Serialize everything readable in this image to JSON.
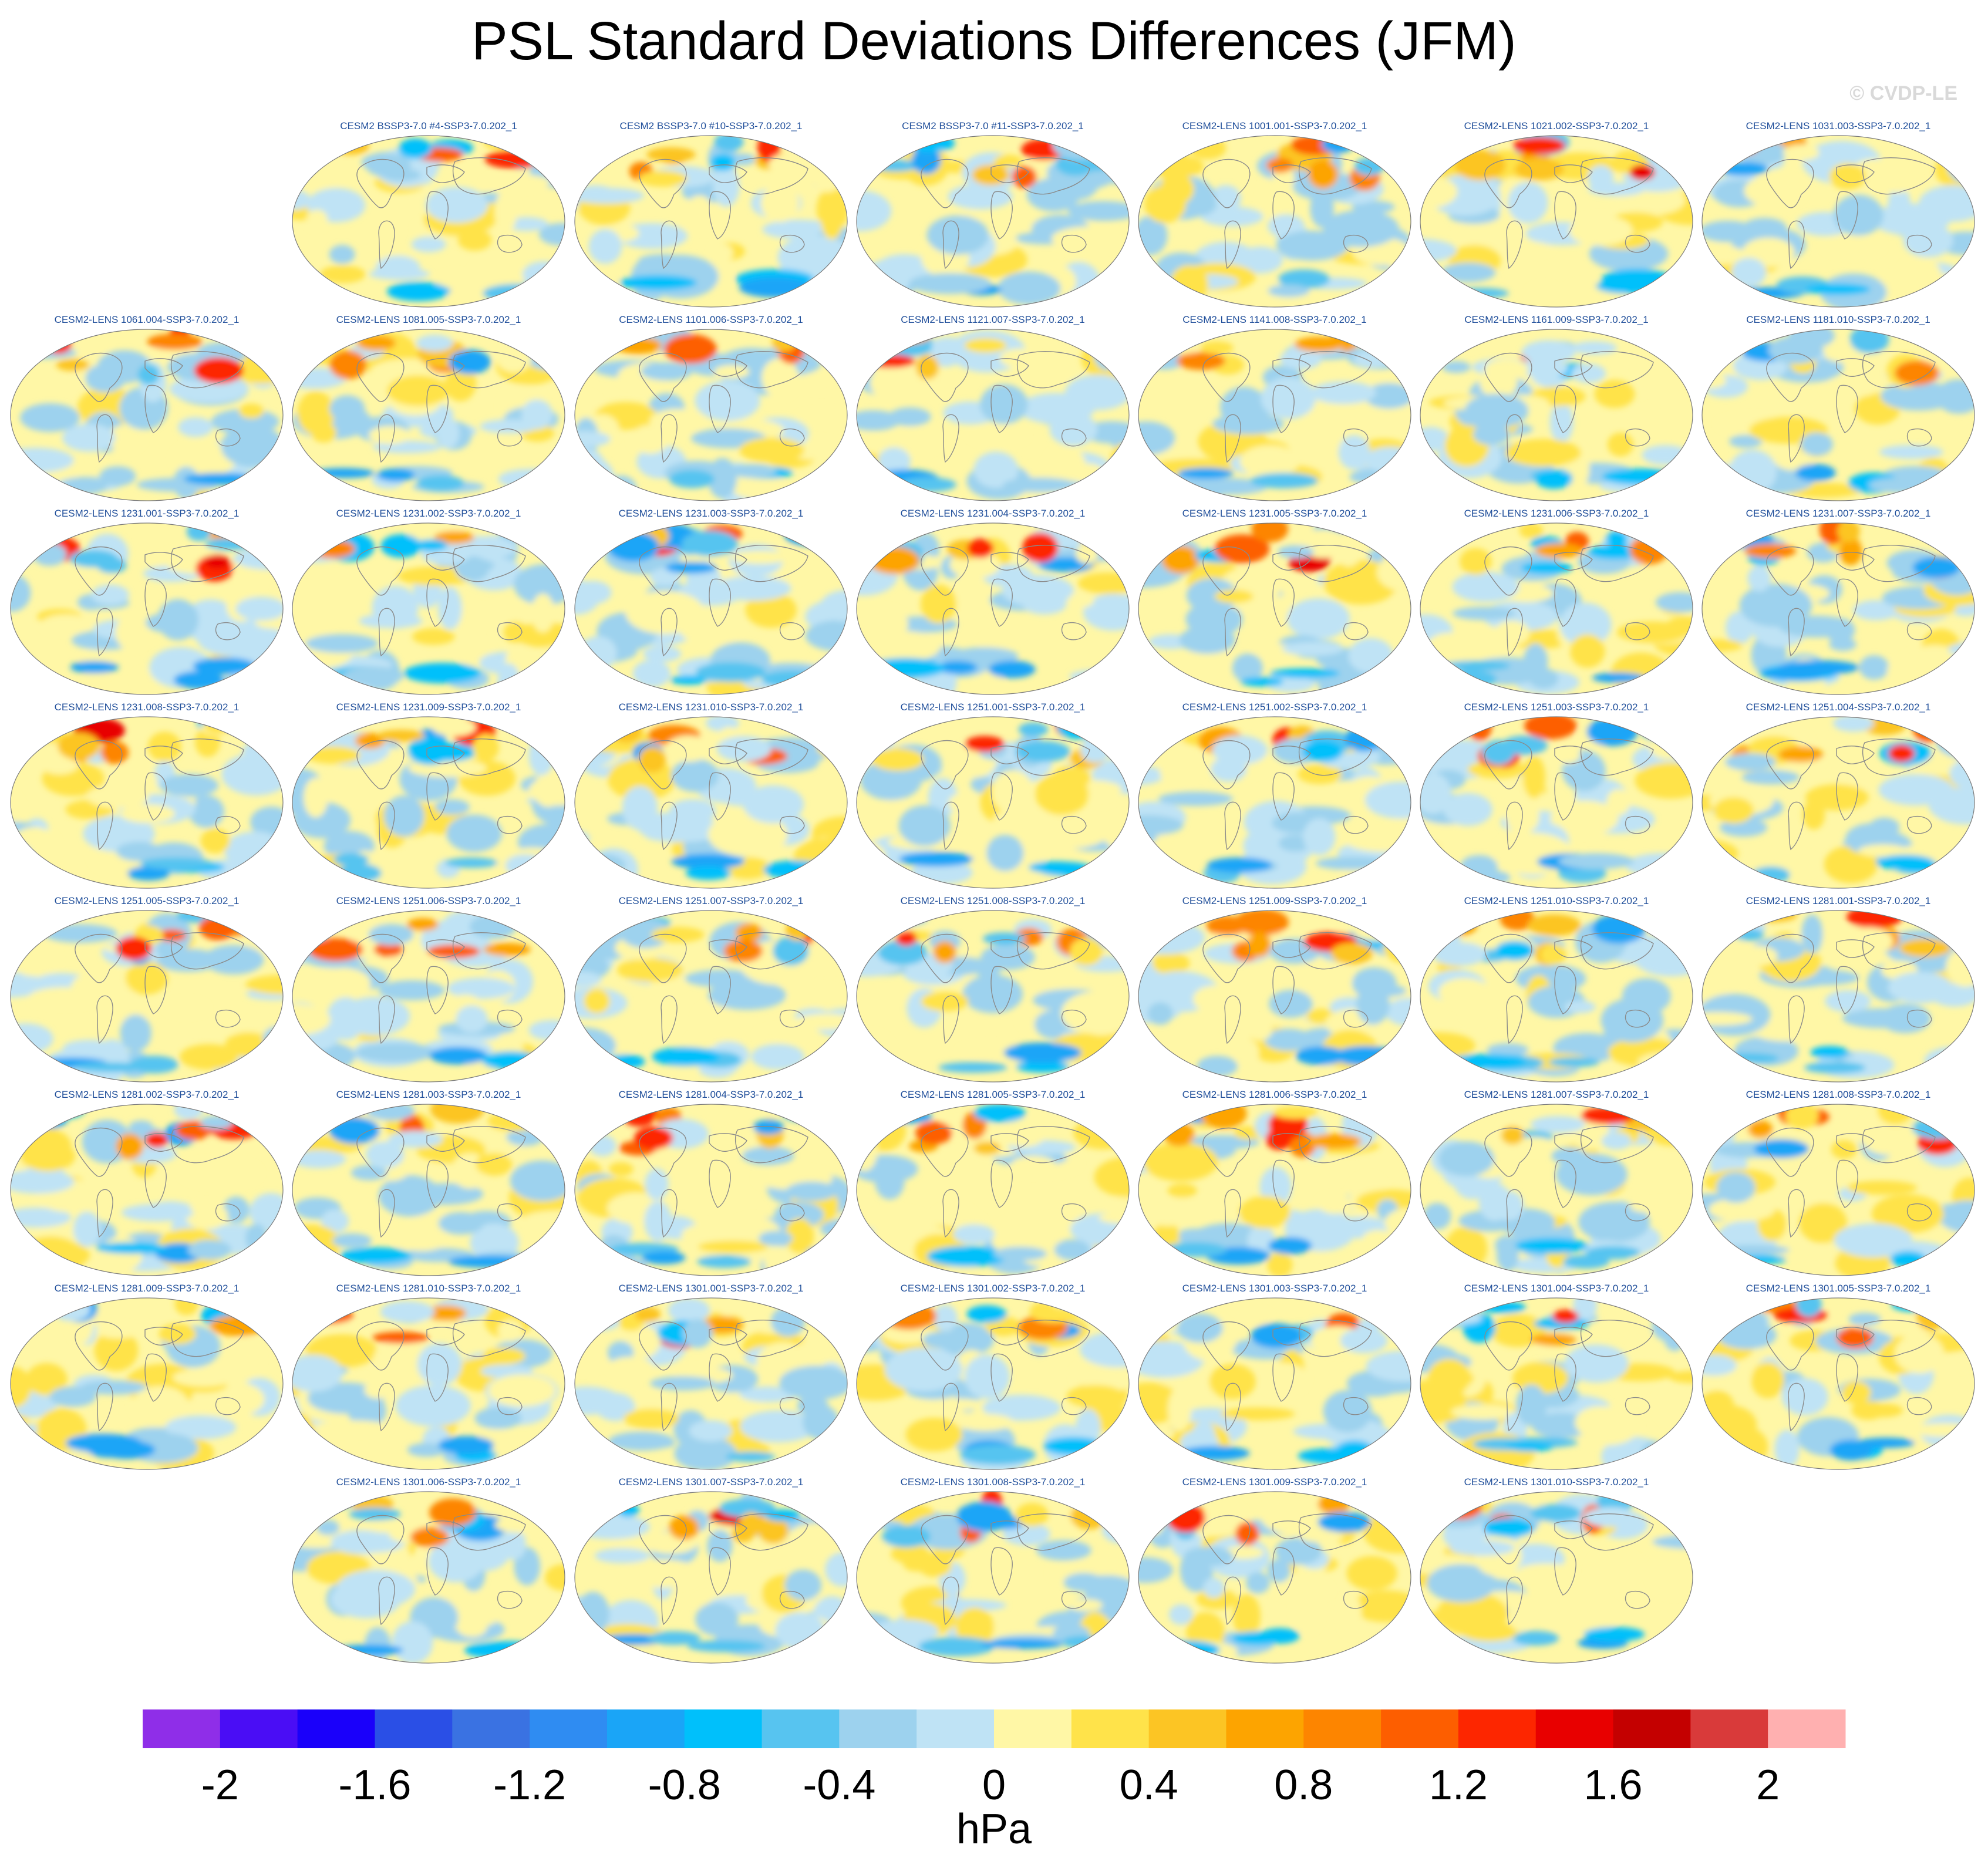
{
  "title": "PSL Standard Deviations Differences (JFM)",
  "watermark": "© CVDP-LE",
  "chart_data": {
    "type": "heatmap",
    "projection": "global map grid (Robinson-like)",
    "panels": [
      {
        "label": "CESM2 BSSP3-7.0 #4-SSP3-7.0.202_1",
        "row": 0,
        "col": 1
      },
      {
        "label": "CESM2 BSSP3-7.0 #10-SSP3-7.0.202_1",
        "row": 0,
        "col": 2
      },
      {
        "label": "CESM2 BSSP3-7.0 #11-SSP3-7.0.202_1",
        "row": 0,
        "col": 3
      },
      {
        "label": "CESM2-LENS 1001.001-SSP3-7.0.202_1",
        "row": 0,
        "col": 4
      },
      {
        "label": "CESM2-LENS 1021.002-SSP3-7.0.202_1",
        "row": 0,
        "col": 5
      },
      {
        "label": "CESM2-LENS 1031.003-SSP3-7.0.202_1",
        "row": 0,
        "col": 6
      },
      {
        "label": "CESM2-LENS 1061.004-SSP3-7.0.202_1",
        "row": 1,
        "col": 0
      },
      {
        "label": "CESM2-LENS 1081.005-SSP3-7.0.202_1",
        "row": 1,
        "col": 1
      },
      {
        "label": "CESM2-LENS 1101.006-SSP3-7.0.202_1",
        "row": 1,
        "col": 2
      },
      {
        "label": "CESM2-LENS 1121.007-SSP3-7.0.202_1",
        "row": 1,
        "col": 3
      },
      {
        "label": "CESM2-LENS 1141.008-SSP3-7.0.202_1",
        "row": 1,
        "col": 4
      },
      {
        "label": "CESM2-LENS 1161.009-SSP3-7.0.202_1",
        "row": 1,
        "col": 5
      },
      {
        "label": "CESM2-LENS 1181.010-SSP3-7.0.202_1",
        "row": 1,
        "col": 6
      },
      {
        "label": "CESM2-LENS 1231.001-SSP3-7.0.202_1",
        "row": 2,
        "col": 0
      },
      {
        "label": "CESM2-LENS 1231.002-SSP3-7.0.202_1",
        "row": 2,
        "col": 1
      },
      {
        "label": "CESM2-LENS 1231.003-SSP3-7.0.202_1",
        "row": 2,
        "col": 2
      },
      {
        "label": "CESM2-LENS 1231.004-SSP3-7.0.202_1",
        "row": 2,
        "col": 3
      },
      {
        "label": "CESM2-LENS 1231.005-SSP3-7.0.202_1",
        "row": 2,
        "col": 4
      },
      {
        "label": "CESM2-LENS 1231.006-SSP3-7.0.202_1",
        "row": 2,
        "col": 5
      },
      {
        "label": "CESM2-LENS 1231.007-SSP3-7.0.202_1",
        "row": 2,
        "col": 6
      },
      {
        "label": "CESM2-LENS 1231.008-SSP3-7.0.202_1",
        "row": 3,
        "col": 0
      },
      {
        "label": "CESM2-LENS 1231.009-SSP3-7.0.202_1",
        "row": 3,
        "col": 1
      },
      {
        "label": "CESM2-LENS 1231.010-SSP3-7.0.202_1",
        "row": 3,
        "col": 2
      },
      {
        "label": "CESM2-LENS 1251.001-SSP3-7.0.202_1",
        "row": 3,
        "col": 3
      },
      {
        "label": "CESM2-LENS 1251.002-SSP3-7.0.202_1",
        "row": 3,
        "col": 4
      },
      {
        "label": "CESM2-LENS 1251.003-SSP3-7.0.202_1",
        "row": 3,
        "col": 5
      },
      {
        "label": "CESM2-LENS 1251.004-SSP3-7.0.202_1",
        "row": 3,
        "col": 6
      },
      {
        "label": "CESM2-LENS 1251.005-SSP3-7.0.202_1",
        "row": 4,
        "col": 0
      },
      {
        "label": "CESM2-LENS 1251.006-SSP3-7.0.202_1",
        "row": 4,
        "col": 1
      },
      {
        "label": "CESM2-LENS 1251.007-SSP3-7.0.202_1",
        "row": 4,
        "col": 2
      },
      {
        "label": "CESM2-LENS 1251.008-SSP3-7.0.202_1",
        "row": 4,
        "col": 3
      },
      {
        "label": "CESM2-LENS 1251.009-SSP3-7.0.202_1",
        "row": 4,
        "col": 4
      },
      {
        "label": "CESM2-LENS 1251.010-SSP3-7.0.202_1",
        "row": 4,
        "col": 5
      },
      {
        "label": "CESM2-LENS 1281.001-SSP3-7.0.202_1",
        "row": 4,
        "col": 6
      },
      {
        "label": "CESM2-LENS 1281.002-SSP3-7.0.202_1",
        "row": 5,
        "col": 0
      },
      {
        "label": "CESM2-LENS 1281.003-SSP3-7.0.202_1",
        "row": 5,
        "col": 1
      },
      {
        "label": "CESM2-LENS 1281.004-SSP3-7.0.202_1",
        "row": 5,
        "col": 2
      },
      {
        "label": "CESM2-LENS 1281.005-SSP3-7.0.202_1",
        "row": 5,
        "col": 3
      },
      {
        "label": "CESM2-LENS 1281.006-SSP3-7.0.202_1",
        "row": 5,
        "col": 4
      },
      {
        "label": "CESM2-LENS 1281.007-SSP3-7.0.202_1",
        "row": 5,
        "col": 5
      },
      {
        "label": "CESM2-LENS 1281.008-SSP3-7.0.202_1",
        "row": 5,
        "col": 6
      },
      {
        "label": "CESM2-LENS 1281.009-SSP3-7.0.202_1",
        "row": 6,
        "col": 0
      },
      {
        "label": "CESM2-LENS 1281.010-SSP3-7.0.202_1",
        "row": 6,
        "col": 1
      },
      {
        "label": "CESM2-LENS 1301.001-SSP3-7.0.202_1",
        "row": 6,
        "col": 2
      },
      {
        "label": "CESM2-LENS 1301.002-SSP3-7.0.202_1",
        "row": 6,
        "col": 3
      },
      {
        "label": "CESM2-LENS 1301.003-SSP3-7.0.202_1",
        "row": 6,
        "col": 4
      },
      {
        "label": "CESM2-LENS 1301.004-SSP3-7.0.202_1",
        "row": 6,
        "col": 5
      },
      {
        "label": "CESM2-LENS 1301.005-SSP3-7.0.202_1",
        "row": 6,
        "col": 6
      },
      {
        "label": "CESM2-LENS 1301.006-SSP3-7.0.202_1",
        "row": 7,
        "col": 1
      },
      {
        "label": "CESM2-LENS 1301.007-SSP3-7.0.202_1",
        "row": 7,
        "col": 2
      },
      {
        "label": "CESM2-LENS 1301.008-SSP3-7.0.202_1",
        "row": 7,
        "col": 3
      },
      {
        "label": "CESM2-LENS 1301.009-SSP3-7.0.202_1",
        "row": 7,
        "col": 4
      },
      {
        "label": "CESM2-LENS 1301.010-SSP3-7.0.202_1",
        "row": 7,
        "col": 5
      }
    ],
    "colorbar": {
      "units": "hPa",
      "range": [
        -2.2,
        2.2
      ],
      "step": 0.2,
      "tick_labels": [
        "-2",
        "-1.6",
        "-1.2",
        "-0.8",
        "-0.4",
        "0",
        "0.4",
        "0.8",
        "1.2",
        "1.6",
        "2"
      ],
      "tick_values": [
        -2,
        -1.6,
        -1.2,
        -0.8,
        -0.4,
        0,
        0.4,
        0.8,
        1.2,
        1.6,
        2
      ],
      "colors": [
        "#8f2ee8",
        "#4a0df5",
        "#1a00fa",
        "#2a4fe6",
        "#3a72e2",
        "#2f8cf2",
        "#1aa5f7",
        "#00c0fb",
        "#57c4f0",
        "#9dd2ee",
        "#bfe3f5",
        "#fff7a6",
        "#ffe34a",
        "#fcc524",
        "#fda400",
        "#fd8500",
        "#fd5e00",
        "#fd2600",
        "#e80000",
        "#c40000",
        "#d93a3a",
        "#ffb0b0"
      ]
    }
  }
}
